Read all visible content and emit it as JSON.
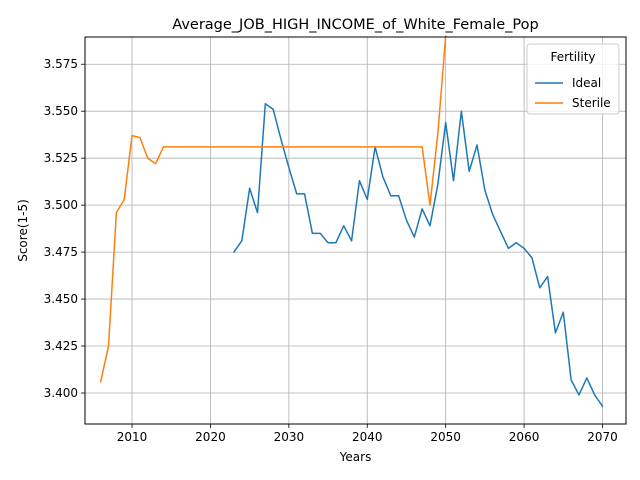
{
  "chart_data": {
    "type": "line",
    "title": "Average_JOB_HIGH_INCOME_of_White_Female_Pop",
    "xlabel": "Years",
    "ylabel": "Score(1-5)",
    "xlim": [
      2004,
      2073
    ],
    "ylim": [
      3.3835,
      3.5895
    ],
    "xticks": [
      2010,
      2020,
      2030,
      2040,
      2050,
      2060,
      2070
    ],
    "yticks": [
      3.4,
      3.425,
      3.45,
      3.475,
      3.5,
      3.525,
      3.55,
      3.575
    ],
    "grid": true,
    "legend": {
      "title": "Fertility",
      "placement": "top-right"
    },
    "series": [
      {
        "name": "Ideal",
        "color": "#1f77b4",
        "x": [
          2023,
          2024,
          2025,
          2026,
          2027,
          2028,
          2029,
          2030,
          2031,
          2032,
          2033,
          2034,
          2035,
          2036,
          2037,
          2038,
          2039,
          2040,
          2041,
          2042,
          2043,
          2044,
          2045,
          2046,
          2047,
          2048,
          2049,
          2050,
          2051,
          2052,
          2053,
          2054,
          2055,
          2056,
          2057,
          2058,
          2059,
          2060,
          2061,
          2062,
          2063,
          2064,
          2065,
          2066,
          2067,
          2068,
          2069,
          2070
        ],
        "y": [
          3.475,
          3.481,
          3.509,
          3.496,
          3.554,
          3.551,
          3.535,
          3.52,
          3.506,
          3.506,
          3.485,
          3.485,
          3.48,
          3.48,
          3.489,
          3.481,
          3.513,
          3.503,
          3.531,
          3.515,
          3.505,
          3.505,
          3.492,
          3.483,
          3.498,
          3.489,
          3.511,
          3.544,
          3.513,
          3.55,
          3.518,
          3.532,
          3.508,
          3.495,
          3.486,
          3.477,
          3.48,
          3.477,
          3.472,
          3.456,
          3.462,
          3.432,
          3.443,
          3.407,
          3.399,
          3.408,
          3.399,
          3.393
        ]
      },
      {
        "name": "Sterile",
        "color": "#ff7f0e",
        "x": [
          2006,
          2007,
          2008,
          2009,
          2010,
          2011,
          2012,
          2013,
          2014,
          2015,
          2020,
          2025,
          2030,
          2035,
          2040,
          2045,
          2047,
          2048,
          2049,
          2050
        ],
        "y": [
          3.406,
          3.425,
          3.496,
          3.503,
          3.537,
          3.536,
          3.525,
          3.522,
          3.531,
          3.531,
          3.531,
          3.531,
          3.531,
          3.531,
          3.531,
          3.531,
          3.531,
          3.5,
          3.538,
          3.59
        ]
      }
    ]
  }
}
